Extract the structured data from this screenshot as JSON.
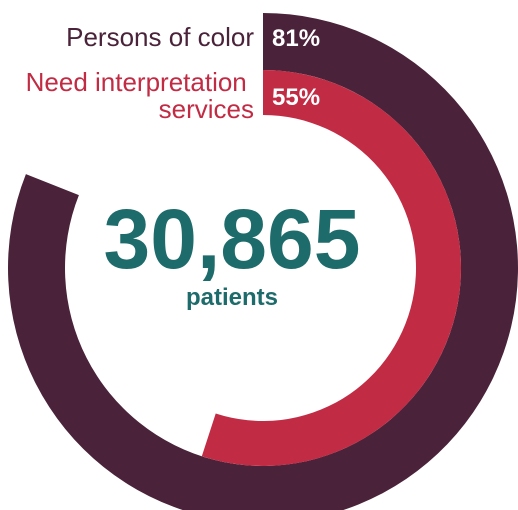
{
  "chart_data": {
    "type": "radial-bar",
    "center": {
      "number": "30,865",
      "caption": "patients"
    },
    "series": [
      {
        "name": "Persons of color",
        "name_lines": [
          "Persons of color"
        ],
        "value": 81,
        "value_label": "81%"
      },
      {
        "name": "Need interpretation services",
        "name_lines": [
          "Need interpretation",
          "services"
        ],
        "value": 55,
        "value_label": "55%"
      }
    ]
  },
  "colors": {
    "outer_ring": "#4a2239",
    "inner_ring": "#c22b44",
    "center_text": "#1e6b6b",
    "outer_label": "#4a2239",
    "inner_label": "#c22b44"
  }
}
